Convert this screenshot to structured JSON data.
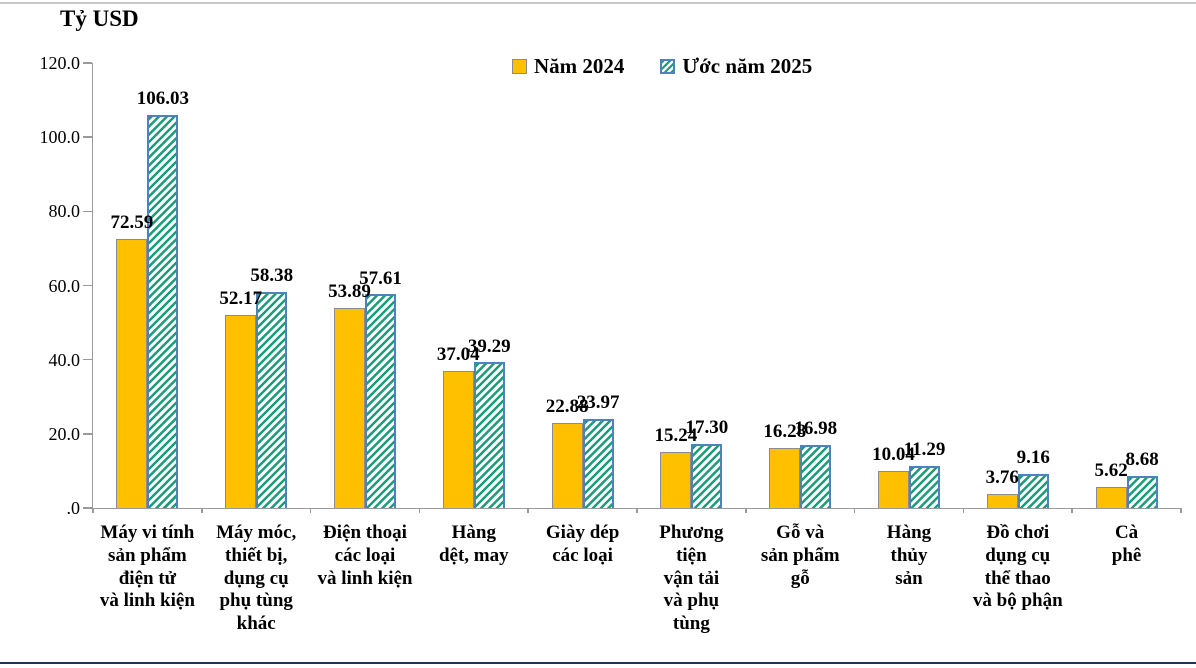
{
  "chart_data": {
    "type": "bar",
    "title": "Tỷ USD",
    "unit": "Tỷ USD",
    "categories": [
      "Máy vi tính sản phẩm điện tử và linh kiện",
      "Máy móc, thiết bị, dụng cụ phụ tùng khác",
      "Điện thoại các loại và linh kiện",
      "Hàng dệt, may",
      "Giày dép các loại",
      "Phương tiện vận tải và phụ tùng",
      "Gỗ và sản phẩm gỗ",
      "Hàng thủy sản",
      "Đồ chơi dụng cụ thể thao và bộ phận",
      "Cà phê"
    ],
    "category_label_lines": [
      [
        "Máy vi tính",
        "sản phẩm",
        "điện tử",
        "và linh kiện"
      ],
      [
        "Máy móc,",
        "thiết bị,",
        "dụng cụ",
        "phụ tùng",
        "khác"
      ],
      [
        "Điện thoại",
        "các loại",
        "và linh kiện"
      ],
      [
        "Hàng",
        "dệt, may"
      ],
      [
        "Giày dép",
        "các loại"
      ],
      [
        "Phương",
        "tiện",
        "vận tải",
        "và phụ",
        "tùng"
      ],
      [
        "Gỗ và",
        "sản phẩm",
        "gỗ"
      ],
      [
        "Hàng",
        "thủy",
        "sản"
      ],
      [
        "Đồ chơi",
        "dụng cụ",
        "thể thao",
        "và bộ phận"
      ],
      [
        "Cà",
        "phê"
      ]
    ],
    "series": [
      {
        "name": "Năm 2024",
        "values": [
          72.59,
          52.17,
          53.89,
          37.04,
          22.88,
          15.24,
          16.28,
          10.04,
          3.76,
          5.62
        ]
      },
      {
        "name": "Ước năm 2025",
        "values": [
          106.03,
          58.38,
          57.61,
          39.29,
          23.97,
          17.3,
          16.98,
          11.29,
          9.16,
          8.68
        ]
      }
    ],
    "ylim": [
      0,
      120
    ],
    "y_ticks": [
      {
        "value": 120,
        "label": "120.0"
      },
      {
        "value": 100,
        "label": "100.0"
      },
      {
        "value": 80,
        "label": "80.0"
      },
      {
        "value": 60,
        "label": "60.0"
      },
      {
        "value": 40,
        "label": "40.0"
      },
      {
        "value": 20,
        "label": "20.0"
      },
      {
        "value": 0,
        "label": ".0"
      }
    ],
    "grid": false,
    "legend_position": "top-center",
    "value_label_decimals": 2,
    "colors": {
      "bar_2024_fill": "#FFC000",
      "bar_2024_border": "#8C8C8C",
      "bar_2025_fill": "#FFFFFF",
      "bar_2025_stripe": "#1B9E77",
      "bar_2025_border": "#4F81BD",
      "axis": "#9A9A9A",
      "text": "#000000",
      "top_rule": "#C9C9C9",
      "bottom_rule": "#16365C"
    }
  }
}
